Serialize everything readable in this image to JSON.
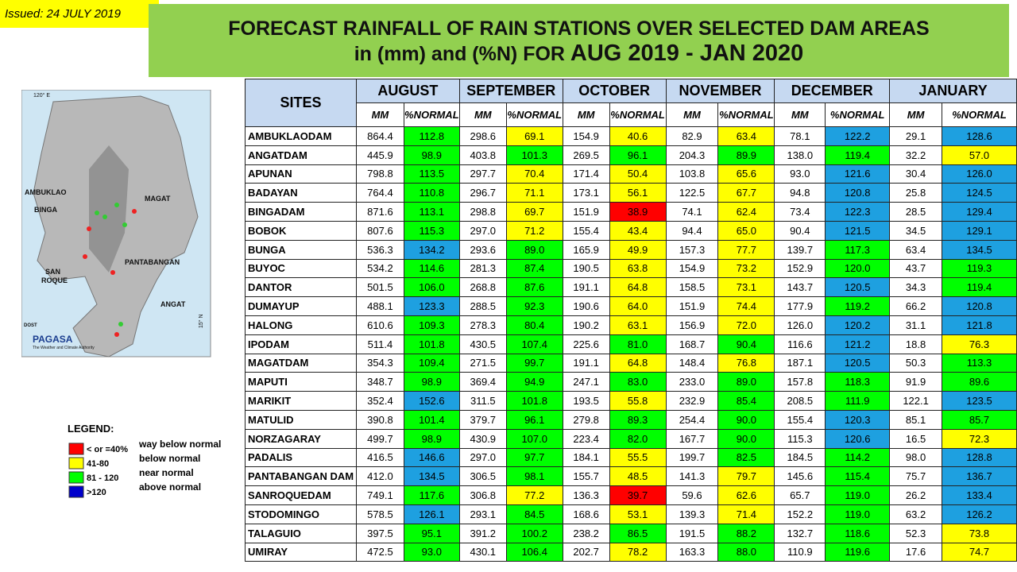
{
  "issued": "Issued: 24 JULY 2019",
  "title": {
    "line1": "FORECAST RAINFALL OF RAIN STATIONS OVER SELECTED DAM AREAS",
    "line2_a": "in (mm) and (%N) FOR ",
    "line2_b": "AUG 2019 - JAN 2020"
  },
  "map": {
    "labels": {
      "lon": "120° E",
      "lat": "15° N",
      "ambuklao": "AMBUKLAO",
      "binga": "BINGA",
      "magat": "MAGAT",
      "pantabangan": "PANTABANGAN",
      "sanroque1": "SAN",
      "sanroque2": "ROQUE",
      "angat": "ANGAT"
    },
    "logo": {
      "agency": "DOST",
      "name": "PAGASA",
      "tagline": "The Weather and Climate Authority"
    }
  },
  "legend": {
    "title": "LEGEND:",
    "items": [
      {
        "label": "< or =40%",
        "description": "way below normal",
        "color": "#ff0000",
        "cell_color": "#ff0000",
        "max": 40
      },
      {
        "label": "41-80",
        "description": "below normal",
        "color": "#ffff00",
        "cell_color": "#ffff00",
        "max": 80
      },
      {
        "label": "81 - 120",
        "description": "near normal",
        "color": "#00ff00",
        "cell_color": "#00ff00",
        "max": 120
      },
      {
        "label": ">120",
        "description": "above normal",
        "color": "#0000cc",
        "cell_color": "#1ea0e0",
        "max": null
      }
    ]
  },
  "table": {
    "site_header": "SITES",
    "months": [
      "AUGUST",
      "SEPTEMBER",
      "OCTOBER",
      "NOVEMBER",
      "DECEMBER",
      "JANUARY"
    ],
    "sub_headers": [
      "MM",
      "%NORMAL"
    ],
    "rows": [
      {
        "site": "AMBUKLAODAM",
        "values": [
          "864.4",
          "112.8",
          "298.6",
          "69.1",
          "154.9",
          "40.6",
          "82.9",
          "63.4",
          "78.1",
          "122.2",
          "29.1",
          "128.6"
        ]
      },
      {
        "site": "ANGATDAM",
        "values": [
          "445.9",
          "98.9",
          "403.8",
          "101.3",
          "269.5",
          "96.1",
          "204.3",
          "89.9",
          "138.0",
          "119.4",
          "32.2",
          "57.0"
        ]
      },
      {
        "site": "APUNAN",
        "values": [
          "798.8",
          "113.5",
          "297.7",
          "70.4",
          "171.4",
          "50.4",
          "103.8",
          "65.6",
          "93.0",
          "121.6",
          "30.4",
          "126.0"
        ]
      },
      {
        "site": "BADAYAN",
        "values": [
          "764.4",
          "110.8",
          "296.7",
          "71.1",
          "173.1",
          "56.1",
          "122.5",
          "67.7",
          "94.8",
          "120.8",
          "25.8",
          "124.5"
        ]
      },
      {
        "site": "BINGADAM",
        "values": [
          "871.6",
          "113.1",
          "298.8",
          "69.7",
          "151.9",
          "38.9",
          "74.1",
          "62.4",
          "73.4",
          "122.3",
          "28.5",
          "129.4"
        ]
      },
      {
        "site": "BOBOK",
        "values": [
          "807.6",
          "115.3",
          "297.0",
          "71.2",
          "155.4",
          "43.4",
          "94.4",
          "65.0",
          "90.4",
          "121.5",
          "34.5",
          "129.1"
        ]
      },
      {
        "site": "BUNGA",
        "values": [
          "536.3",
          "134.2",
          "293.6",
          "89.0",
          "165.9",
          "49.9",
          "157.3",
          "77.7",
          "139.7",
          "117.3",
          "63.4",
          "134.5"
        ]
      },
      {
        "site": "BUYOC",
        "values": [
          "534.2",
          "114.6",
          "281.3",
          "87.4",
          "190.5",
          "63.8",
          "154.9",
          "73.2",
          "152.9",
          "120.0",
          "43.7",
          "119.3"
        ]
      },
      {
        "site": "DANTOR",
        "values": [
          "501.5",
          "106.0",
          "268.8",
          "87.6",
          "191.1",
          "64.8",
          "158.5",
          "73.1",
          "143.7",
          "120.5",
          "34.3",
          "119.4"
        ]
      },
      {
        "site": "DUMAYUP",
        "values": [
          "488.1",
          "123.3",
          "288.5",
          "92.3",
          "190.6",
          "64.0",
          "151.9",
          "74.4",
          "177.9",
          "119.2",
          "66.2",
          "120.8"
        ]
      },
      {
        "site": "HALONG",
        "values": [
          "610.6",
          "109.3",
          "278.3",
          "80.4",
          "190.2",
          "63.1",
          "156.9",
          "72.0",
          "126.0",
          "120.2",
          "31.1",
          "121.8"
        ]
      },
      {
        "site": "IPODAM",
        "values": [
          "511.4",
          "101.8",
          "430.5",
          "107.4",
          "225.6",
          "81.0",
          "168.7",
          "90.4",
          "116.6",
          "121.2",
          "18.8",
          "76.3"
        ]
      },
      {
        "site": "MAGATDAM",
        "values": [
          "354.3",
          "109.4",
          "271.5",
          "99.7",
          "191.1",
          "64.8",
          "148.4",
          "76.8",
          "187.1",
          "120.5",
          "50.3",
          "113.3"
        ]
      },
      {
        "site": "MAPUTI",
        "values": [
          "348.7",
          "98.9",
          "369.4",
          "94.9",
          "247.1",
          "83.0",
          "233.0",
          "89.0",
          "157.8",
          "118.3",
          "91.9",
          "89.6"
        ]
      },
      {
        "site": "MARIKIT",
        "values": [
          "352.4",
          "152.6",
          "311.5",
          "101.8",
          "193.5",
          "55.8",
          "232.9",
          "85.4",
          "208.5",
          "111.9",
          "122.1",
          "123.5"
        ]
      },
      {
        "site": "MATULID",
        "values": [
          "390.8",
          "101.4",
          "379.7",
          "96.1",
          "279.8",
          "89.3",
          "254.4",
          "90.0",
          "155.4",
          "120.3",
          "85.1",
          "85.7"
        ]
      },
      {
        "site": "NORZAGARAY",
        "values": [
          "499.7",
          "98.9",
          "430.9",
          "107.0",
          "223.4",
          "82.0",
          "167.7",
          "90.0",
          "115.3",
          "120.6",
          "16.5",
          "72.3"
        ]
      },
      {
        "site": "PADALIS",
        "values": [
          "416.5",
          "146.6",
          "297.0",
          "97.7",
          "184.1",
          "55.5",
          "199.7",
          "82.5",
          "184.5",
          "114.2",
          "98.0",
          "128.8"
        ]
      },
      {
        "site": "PANTABANGAN DAM",
        "values": [
          "412.0",
          "134.5",
          "306.5",
          "98.1",
          "155.7",
          "48.5",
          "141.3",
          "79.7",
          "145.6",
          "115.4",
          "75.7",
          "136.7"
        ]
      },
      {
        "site": "SANROQUEDAM",
        "values": [
          "749.1",
          "117.6",
          "306.8",
          "77.2",
          "136.3",
          "39.7",
          "59.6",
          "62.6",
          "65.7",
          "119.0",
          "26.2",
          "133.4"
        ]
      },
      {
        "site": "STODOMINGO",
        "values": [
          "578.5",
          "126.1",
          "293.1",
          "84.5",
          "168.6",
          "53.1",
          "139.3",
          "71.4",
          "152.2",
          "119.0",
          "63.2",
          "126.2"
        ]
      },
      {
        "site": "TALAGUIO",
        "values": [
          "397.5",
          "95.1",
          "391.2",
          "100.2",
          "238.2",
          "86.5",
          "191.5",
          "88.2",
          "132.7",
          "118.6",
          "52.3",
          "73.8"
        ]
      },
      {
        "site": "UMIRAY",
        "values": [
          "472.5",
          "93.0",
          "430.1",
          "106.4",
          "202.7",
          "78.2",
          "163.3",
          "88.0",
          "110.9",
          "119.6",
          "17.6",
          "74.7"
        ]
      }
    ]
  }
}
